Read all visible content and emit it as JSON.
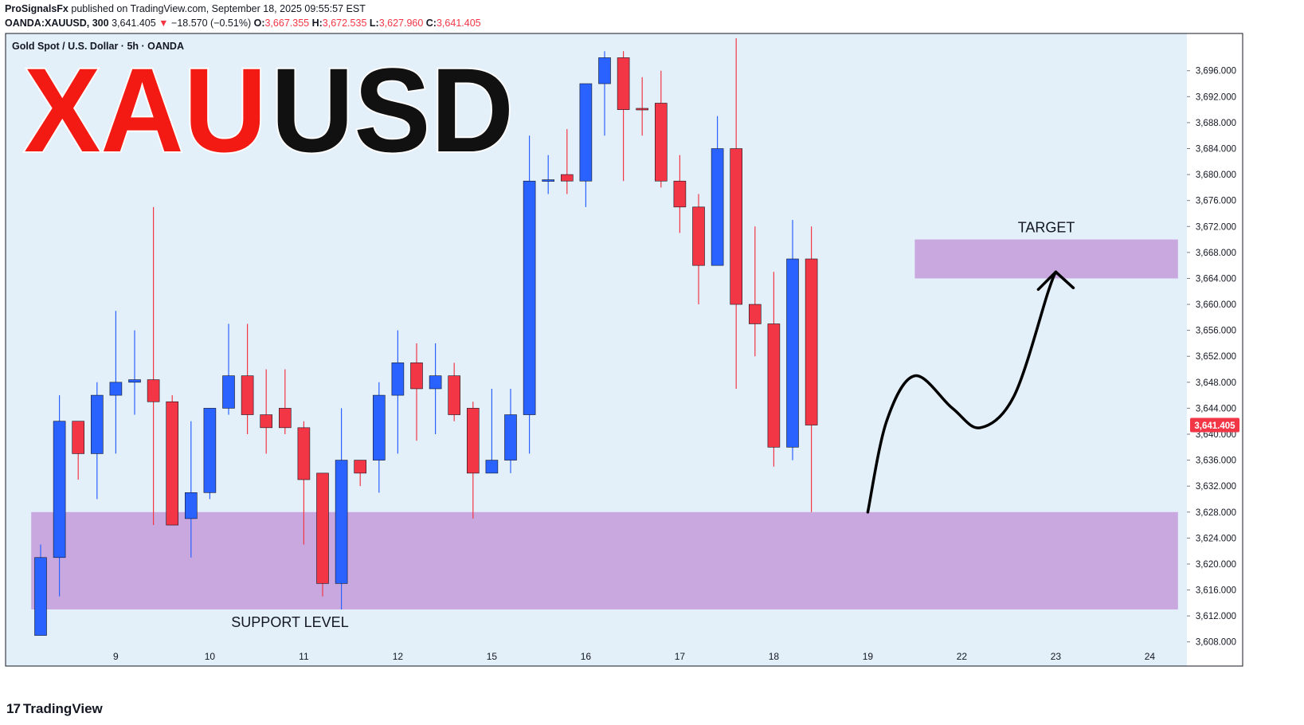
{
  "header": {
    "author": "ProSignalsFx",
    "published_text": "published on TradingView.com, September 18, 2025 09:55:57 EST",
    "symbol": "OANDA:XAUUSD, 300",
    "last": "3,641.405",
    "change": "−18.570 (−0.51%)",
    "o_label": "O:",
    "o_val": "3,667.355",
    "h_label": "H:",
    "h_val": "3,672.535",
    "l_label": "L:",
    "l_val": "3,627.960",
    "c_label": "C:",
    "c_val": "3,641.405"
  },
  "footer": {
    "logo_text": "TradingView",
    "mark": "17"
  },
  "chart_data": {
    "type": "candlestick",
    "legend": "Gold Spot / U.S. Dollar · 5h · OANDA",
    "big_title_part1": "XAU",
    "big_title_part2": "USD",
    "ylim": [
      3606,
      3701
    ],
    "yticks": [
      "3,696.000",
      "3,692.000",
      "3,688.000",
      "3,684.000",
      "3,680.000",
      "3,676.000",
      "3,672.000",
      "3,668.000",
      "3,664.000",
      "3,660.000",
      "3,656.000",
      "3,652.000",
      "3,648.000",
      "3,644.000",
      "3,640.000",
      "3,636.000",
      "3,632.000",
      "3,628.000",
      "3,624.000",
      "3,620.000",
      "3,616.000",
      "3,612.000",
      "3,608.000"
    ],
    "yticks_num": [
      3696,
      3692,
      3688,
      3684,
      3680,
      3676,
      3672,
      3668,
      3664,
      3660,
      3656,
      3652,
      3648,
      3644,
      3640,
      3636,
      3632,
      3628,
      3624,
      3620,
      3616,
      3612,
      3608
    ],
    "xticks": [
      {
        "label": "9",
        "i": 4
      },
      {
        "label": "10",
        "i": 9
      },
      {
        "label": "11",
        "i": 14
      },
      {
        "label": "12",
        "i": 19
      },
      {
        "label": "15",
        "i": 24
      },
      {
        "label": "16",
        "i": 29
      },
      {
        "label": "17",
        "i": 34
      },
      {
        "label": "18",
        "i": 39
      },
      {
        "label": "19",
        "i": 44
      },
      {
        "label": "22",
        "i": 49
      },
      {
        "label": "23",
        "i": 54
      },
      {
        "label": "24",
        "i": 59
      }
    ],
    "current_price": 3641.405,
    "current_price_label": "3,641.405",
    "candles": [
      {
        "o": 3609,
        "h": 3623,
        "l": 3609,
        "c": 3621
      },
      {
        "o": 3621,
        "h": 3646,
        "l": 3615,
        "c": 3642
      },
      {
        "o": 3642,
        "h": 3642,
        "l": 3633,
        "c": 3637
      },
      {
        "o": 3637,
        "h": 3648,
        "l": 3630,
        "c": 3646
      },
      {
        "o": 3646,
        "h": 3659,
        "l": 3637,
        "c": 3648
      },
      {
        "o": 3648,
        "h": 3656,
        "l": 3643,
        "c": 3648.4
      },
      {
        "o": 3648.4,
        "h": 3675,
        "l": 3626,
        "c": 3645
      },
      {
        "o": 3645,
        "h": 3646,
        "l": 3626,
        "c": 3626
      },
      {
        "o": 3627,
        "h": 3642,
        "l": 3621,
        "c": 3631
      },
      {
        "o": 3631,
        "h": 3644,
        "l": 3630,
        "c": 3644
      },
      {
        "o": 3644,
        "h": 3657,
        "l": 3643,
        "c": 3649
      },
      {
        "o": 3649,
        "h": 3657,
        "l": 3640,
        "c": 3643
      },
      {
        "o": 3643,
        "h": 3650,
        "l": 3637,
        "c": 3641
      },
      {
        "o": 3644,
        "h": 3650,
        "l": 3640,
        "c": 3641
      },
      {
        "o": 3641,
        "h": 3642,
        "l": 3623,
        "c": 3633
      },
      {
        "o": 3634,
        "h": 3634,
        "l": 3615,
        "c": 3617
      },
      {
        "o": 3617,
        "h": 3644,
        "l": 3613,
        "c": 3636
      },
      {
        "o": 3636,
        "h": 3636,
        "l": 3632,
        "c": 3634
      },
      {
        "o": 3636,
        "h": 3648,
        "l": 3631,
        "c": 3646
      },
      {
        "o": 3646,
        "h": 3656,
        "l": 3637,
        "c": 3651
      },
      {
        "o": 3651,
        "h": 3654,
        "l": 3639,
        "c": 3647
      },
      {
        "o": 3647,
        "h": 3654,
        "l": 3640,
        "c": 3649
      },
      {
        "o": 3649,
        "h": 3651,
        "l": 3642,
        "c": 3643
      },
      {
        "o": 3644,
        "h": 3645,
        "l": 3627,
        "c": 3634
      },
      {
        "o": 3634,
        "h": 3647,
        "l": 3634,
        "c": 3636
      },
      {
        "o": 3636,
        "h": 3647,
        "l": 3634,
        "c": 3643
      },
      {
        "o": 3643,
        "h": 3686,
        "l": 3637,
        "c": 3679
      },
      {
        "o": 3679,
        "h": 3683,
        "l": 3677,
        "c": 3679.2
      },
      {
        "o": 3680,
        "h": 3687,
        "l": 3677,
        "c": 3679
      },
      {
        "o": 3679,
        "h": 3694,
        "l": 3675,
        "c": 3694
      },
      {
        "o": 3694,
        "h": 3699,
        "l": 3686,
        "c": 3698
      },
      {
        "o": 3698,
        "h": 3699,
        "l": 3679,
        "c": 3690
      },
      {
        "o": 3690.2,
        "h": 3695,
        "l": 3686,
        "c": 3690
      },
      {
        "o": 3691,
        "h": 3696,
        "l": 3678,
        "c": 3679
      },
      {
        "o": 3679,
        "h": 3683,
        "l": 3671,
        "c": 3675
      },
      {
        "o": 3675,
        "h": 3677,
        "l": 3660,
        "c": 3666
      },
      {
        "o": 3666,
        "h": 3689,
        "l": 3666,
        "c": 3684
      },
      {
        "o": 3684,
        "h": 3701,
        "l": 3647,
        "c": 3660
      },
      {
        "o": 3660,
        "h": 3672,
        "l": 3652,
        "c": 3657
      },
      {
        "o": 3657,
        "h": 3665,
        "l": 3635,
        "c": 3638
      },
      {
        "o": 3638,
        "h": 3673,
        "l": 3636,
        "c": 3667
      },
      {
        "o": 3667,
        "h": 3672,
        "l": 3628,
        "c": 3641.405
      }
    ],
    "zones": [
      {
        "label": "SUPPORT LEVEL",
        "from_i": -0.5,
        "to_i": 60.5,
        "low": 3613,
        "high": 3628
      },
      {
        "label": "TARGET",
        "from_i": 46.5,
        "to_i": 60.5,
        "low": 3664,
        "high": 3670
      }
    ],
    "projection": [
      {
        "i": 44.0,
        "p": 3628
      },
      {
        "i": 45.0,
        "p": 3642
      },
      {
        "i": 46.5,
        "p": 3649
      },
      {
        "i": 48.5,
        "p": 3644
      },
      {
        "i": 50.0,
        "p": 3641
      },
      {
        "i": 51.8,
        "p": 3646
      },
      {
        "i": 53.6,
        "p": 3662
      },
      {
        "i": 54.0,
        "p": 3665
      }
    ],
    "colors": {
      "bull": "#2962ff",
      "bear": "#f23645",
      "plot_bg": "#e3eff9",
      "zone": "#c9a8e0",
      "title_red": "#f21a12",
      "title_black": "#111111",
      "axis_text": "#131722",
      "price_label_bg": "#f23645"
    }
  }
}
